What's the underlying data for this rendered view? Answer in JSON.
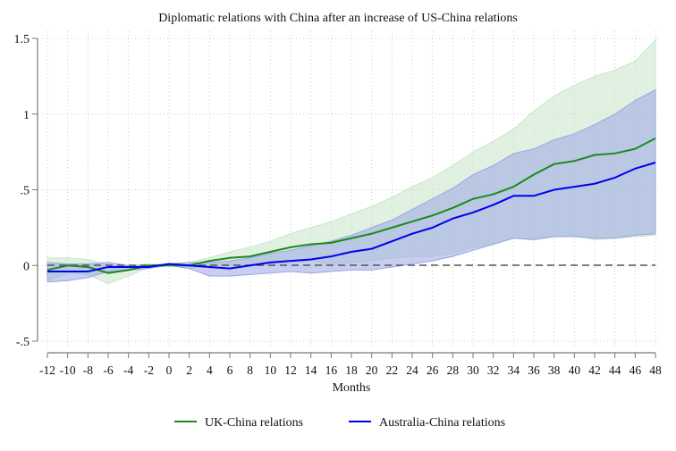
{
  "chart_data": {
    "type": "line",
    "title": "Diplomatic relations with China after an increase of US-China relations",
    "xlabel": "Months",
    "ylabel": "",
    "xlim": [
      -12,
      48
    ],
    "ylim": [
      -0.5,
      1.5
    ],
    "xticks": [
      "-12",
      "-10",
      "-8",
      "-6",
      "-4",
      "-2",
      "0",
      "2",
      "4",
      "6",
      "8",
      "10",
      "12",
      "14",
      "16",
      "18",
      "20",
      "22",
      "24",
      "26",
      "28",
      "30",
      "32",
      "34",
      "36",
      "38",
      "40",
      "42",
      "44",
      "46",
      "48"
    ],
    "yticks": [
      {
        "v": -0.5,
        "label": "-.5"
      },
      {
        "v": 0,
        "label": "0"
      },
      {
        "v": 0.5,
        "label": ".5"
      },
      {
        "v": 1,
        "label": "1"
      },
      {
        "v": 1.5,
        "label": "1.5"
      }
    ],
    "grid": true,
    "legend_position": "bottom",
    "x": [
      -12,
      -10,
      -8,
      -6,
      -4,
      -2,
      0,
      2,
      4,
      6,
      8,
      10,
      12,
      14,
      16,
      18,
      20,
      22,
      24,
      26,
      28,
      30,
      32,
      34,
      36,
      38,
      40,
      42,
      44,
      46,
      48
    ],
    "series": [
      {
        "name": "UK-China relations",
        "color": "#1a8a1a",
        "band_color": "#c8e6c8",
        "values": [
          -0.03,
          0,
          -0.01,
          -0.05,
          -0.03,
          0,
          0,
          0,
          0.03,
          0.05,
          0.06,
          0.09,
          0.12,
          0.14,
          0.15,
          0.18,
          0.21,
          0.25,
          0.29,
          0.33,
          0.38,
          0.44,
          0.47,
          0.52,
          0.6,
          0.67,
          0.69,
          0.73,
          0.74,
          0.77,
          0.84
        ],
        "upper": [
          0.05,
          0.05,
          0.04,
          0,
          0,
          0.01,
          0,
          0.02,
          0.05,
          0.09,
          0.12,
          0.16,
          0.21,
          0.25,
          0.29,
          0.34,
          0.39,
          0.45,
          0.52,
          0.58,
          0.66,
          0.75,
          0.82,
          0.9,
          1.02,
          1.12,
          1.19,
          1.25,
          1.29,
          1.35,
          1.49
        ],
        "lower": [
          -0.1,
          -0.05,
          -0.06,
          -0.12,
          -0.07,
          -0.01,
          0,
          -0.02,
          0,
          0,
          0,
          0.01,
          0.02,
          0.03,
          0.01,
          0.02,
          0.03,
          0.05,
          0.06,
          0.06,
          0.08,
          0.12,
          0.14,
          0.18,
          0.18,
          0.19,
          0.2,
          0.17,
          0.18,
          0.19,
          0.2
        ]
      },
      {
        "name": "Australia-China relations",
        "color": "#0000ee",
        "band_color": "#9aa6e6",
        "values": [
          -0.04,
          -0.04,
          -0.04,
          -0.01,
          -0.01,
          -0.01,
          0.01,
          0,
          -0.01,
          -0.02,
          0,
          0.02,
          0.03,
          0.04,
          0.06,
          0.09,
          0.11,
          0.16,
          0.21,
          0.25,
          0.31,
          0.35,
          0.4,
          0.46,
          0.46,
          0.5,
          0.52,
          0.54,
          0.58,
          0.64,
          0.68
        ],
        "upper": [
          0.02,
          0.01,
          0.01,
          0.02,
          0,
          0,
          0.01,
          0.02,
          0.02,
          0.03,
          0.05,
          0.08,
          0.1,
          0.13,
          0.16,
          0.2,
          0.25,
          0.3,
          0.37,
          0.44,
          0.51,
          0.6,
          0.66,
          0.74,
          0.77,
          0.83,
          0.87,
          0.93,
          1.0,
          1.09,
          1.16
        ],
        "lower": [
          -0.11,
          -0.1,
          -0.08,
          -0.04,
          -0.03,
          -0.02,
          0,
          -0.02,
          -0.07,
          -0.07,
          -0.06,
          -0.05,
          -0.04,
          -0.05,
          -0.04,
          -0.03,
          -0.03,
          -0.01,
          0.01,
          0.03,
          0.06,
          0.1,
          0.14,
          0.18,
          0.17,
          0.19,
          0.19,
          0.18,
          0.18,
          0.2,
          0.21
        ]
      }
    ]
  }
}
